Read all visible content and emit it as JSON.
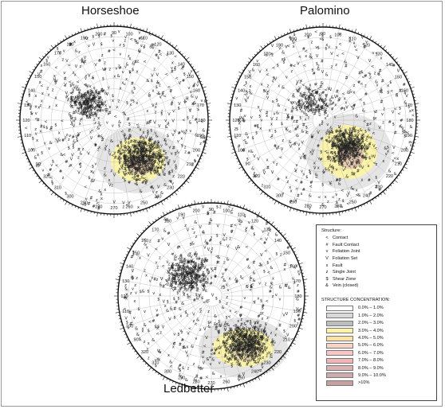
{
  "titles": {
    "horseshoe": "Horseshoe",
    "palomino": "Palomino",
    "ledbetter": "Ledbetter"
  },
  "azimuth_labels": [
    "90",
    "100",
    "110",
    "120",
    "130",
    "140",
    "150",
    "160",
    "170",
    "180",
    "190",
    "200",
    "210",
    "220",
    "230",
    "240",
    "250",
    "260",
    "270",
    "280",
    "290",
    "300",
    "310",
    "320"
  ],
  "legend": {
    "structure_heading": "Structure:",
    "symbols": [
      {
        "symbol": "<",
        "label": "Contact"
      },
      {
        "symbol": "#",
        "label": "Fault Contact"
      },
      {
        "symbol": "v",
        "label": "Foliation Joint"
      },
      {
        "symbol": "V",
        "label": "Foliation Set"
      },
      {
        "symbol": "x",
        "label": "Fault"
      },
      {
        "symbol": "z",
        "label": "Single Joint"
      },
      {
        "symbol": "$",
        "label": "Shear Zone"
      },
      {
        "symbol": "&",
        "label": "Vein (closed)"
      }
    ],
    "concentration_heading": "STRUCTURE CONCENTRATION:",
    "concentrations": [
      {
        "color": "#ffffff",
        "label": "0.0% – 1.0%"
      },
      {
        "color": "#d9d9d9",
        "label": "1.0% – 2.0%"
      },
      {
        "color": "#bdbdbd",
        "label": "2.0% – 3.0%"
      },
      {
        "color": "#fbf3a8",
        "label": "3.0% – 4.0%"
      },
      {
        "color": "#fde3a3",
        "label": "4.0% – 5.0%"
      },
      {
        "color": "#fbd3c4",
        "label": "5.0% – 6.0%"
      },
      {
        "color": "#f8c6c4",
        "label": "6.0% – 7.0%"
      },
      {
        "color": "#f2b4b4",
        "label": "7.0% – 8.0%"
      },
      {
        "color": "#dcb1b1",
        "label": "8.0% – 9.0%"
      },
      {
        "color": "#ceaaaa",
        "label": "9.0% – 10.0%"
      },
      {
        "color": "#c9a0a0",
        "label": ">10%"
      }
    ]
  }
}
